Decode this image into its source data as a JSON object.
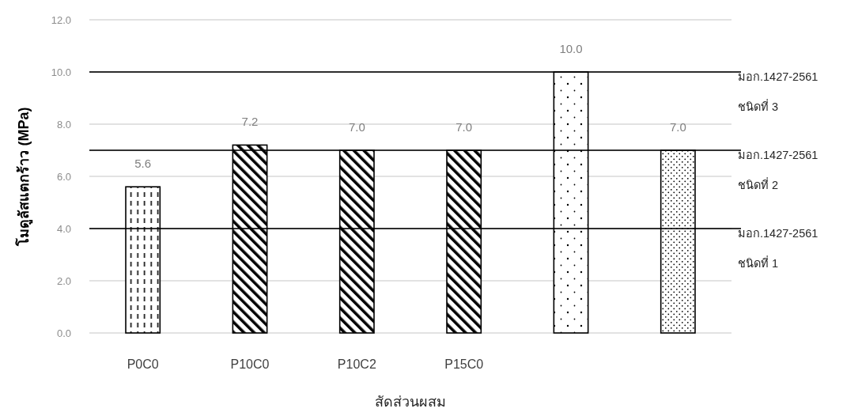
{
  "chart_data": {
    "type": "bar",
    "xlabel": "สัดส่วนผสม",
    "ylabel": "โมดูลัสแตกร้าว (MPa)",
    "categories": [
      "P0C0",
      "P10C0",
      "P10C2",
      "P15C0",
      null,
      null
    ],
    "values": [
      5.6,
      7.2,
      7.0,
      7.0,
      10.0,
      7.0
    ],
    "colors": [
      "#000000",
      "#000000",
      "#000000",
      "#000000",
      "#000000",
      "#000000"
    ],
    "value_labels": [
      "5.6",
      "7.2",
      "7.0",
      "7.0",
      "10.0",
      "7.0"
    ],
    "ylim": [
      0,
      12
    ],
    "yticks": [
      {
        "value": 0,
        "label": "0.0"
      },
      {
        "value": 2,
        "label": "2.0"
      },
      {
        "value": 4,
        "label": "4.0"
      },
      {
        "value": 6,
        "label": "6.0"
      },
      {
        "value": 8,
        "label": "8.0"
      },
      {
        "value": 10,
        "label": "10.0"
      },
      {
        "value": 12,
        "label": "12.0"
      }
    ],
    "grid": "y",
    "ref_lines": [
      {
        "axis": "y",
        "value": 10,
        "label": "มอก.1427-2561\nชนิดที่ 3",
        "color": "#000000"
      },
      {
        "axis": "y",
        "value": 7,
        "label": "มอก.1427-2561\nชนิดที่ 2",
        "color": "#000000"
      },
      {
        "axis": "y",
        "value": 4,
        "label": "มอก.1427-2561\nชนิดที่ 1",
        "color": "#000000"
      }
    ]
  }
}
